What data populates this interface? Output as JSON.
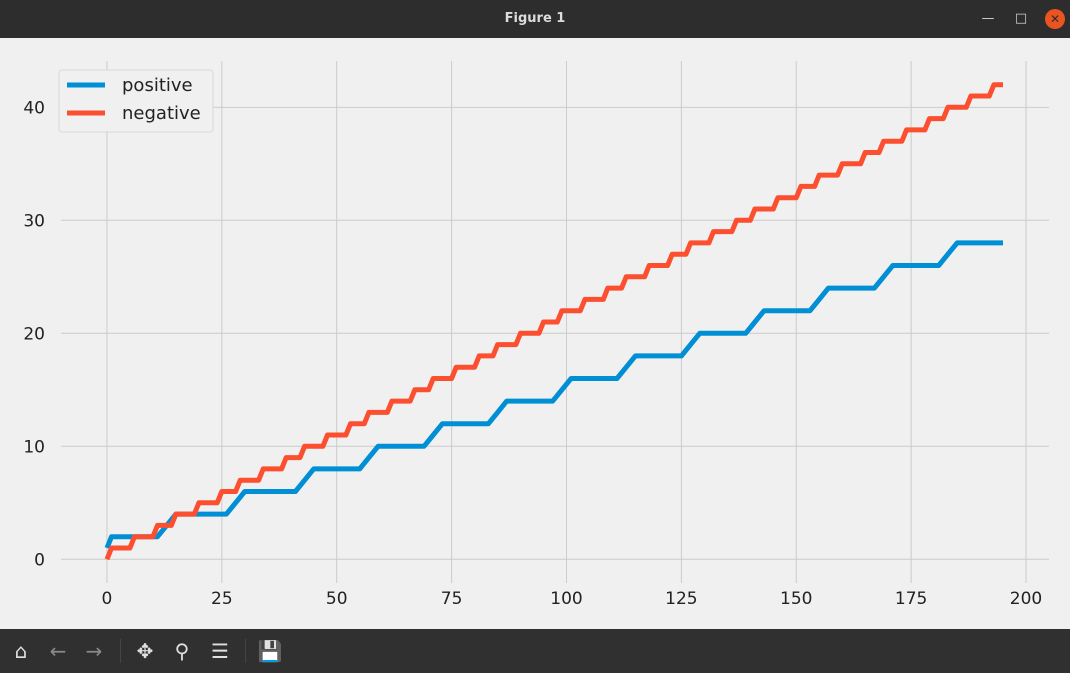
{
  "window": {
    "title": "Figure 1"
  },
  "toolbar": {
    "buttons": [
      "home-icon",
      "back-icon",
      "forward-icon",
      "pan-icon",
      "zoom-icon",
      "configure-subplots-icon",
      "save-icon"
    ]
  },
  "colors": {
    "positive": "#008fd5",
    "negative": "#fc4f30",
    "grid": "#cbcbcb",
    "background": "#f0f0f0"
  },
  "chart_data": {
    "type": "line",
    "title": "",
    "xlabel": "",
    "ylabel": "",
    "xlim": [
      -10,
      205
    ],
    "ylim": [
      -2.1,
      44.1
    ],
    "xticks": [
      0,
      25,
      50,
      75,
      100,
      125,
      150,
      175,
      200
    ],
    "yticks": [
      0,
      10,
      20,
      30,
      40
    ],
    "grid": true,
    "legend": "top-left",
    "series": [
      {
        "name": "positive",
        "color": "#008fd5",
        "points": [
          [
            0,
            1
          ],
          [
            1,
            2
          ],
          [
            11,
            2
          ],
          [
            13,
            3
          ],
          [
            15,
            4
          ],
          [
            26,
            4
          ],
          [
            28,
            5
          ],
          [
            30,
            6
          ],
          [
            41,
            6
          ],
          [
            43,
            7
          ],
          [
            45,
            8
          ],
          [
            55,
            8
          ],
          [
            57,
            9
          ],
          [
            59,
            10
          ],
          [
            69,
            10
          ],
          [
            71,
            11
          ],
          [
            73,
            12
          ],
          [
            83,
            12
          ],
          [
            85,
            13
          ],
          [
            87,
            14
          ],
          [
            97,
            14
          ],
          [
            99,
            15
          ],
          [
            101,
            16
          ],
          [
            111,
            16
          ],
          [
            113,
            17
          ],
          [
            115,
            18
          ],
          [
            125,
            18
          ],
          [
            127,
            19
          ],
          [
            129,
            20
          ],
          [
            139,
            20
          ],
          [
            141,
            21
          ],
          [
            143,
            22
          ],
          [
            153,
            22
          ],
          [
            155,
            23
          ],
          [
            157,
            24
          ],
          [
            167,
            24
          ],
          [
            169,
            25
          ],
          [
            171,
            26
          ],
          [
            181,
            26
          ],
          [
            183,
            27
          ],
          [
            185,
            28
          ],
          [
            195,
            28
          ]
        ]
      },
      {
        "name": "negative",
        "color": "#fc4f30",
        "points": [
          [
            0,
            0
          ],
          [
            1,
            1
          ],
          [
            5,
            1
          ],
          [
            6,
            2
          ],
          [
            10,
            2
          ],
          [
            11,
            3
          ],
          [
            14,
            3
          ],
          [
            15,
            4
          ],
          [
            19,
            4
          ],
          [
            20,
            5
          ],
          [
            24,
            5
          ],
          [
            25,
            6
          ],
          [
            28,
            6
          ],
          [
            29,
            7
          ],
          [
            33,
            7
          ],
          [
            34,
            8
          ],
          [
            38,
            8
          ],
          [
            39,
            9
          ],
          [
            42,
            9
          ],
          [
            43,
            10
          ],
          [
            47,
            10
          ],
          [
            48,
            11
          ],
          [
            52,
            11
          ],
          [
            53,
            12
          ],
          [
            56,
            12
          ],
          [
            57,
            13
          ],
          [
            61,
            13
          ],
          [
            62,
            14
          ],
          [
            66,
            14
          ],
          [
            67,
            15
          ],
          [
            70,
            15
          ],
          [
            71,
            16
          ],
          [
            75,
            16
          ],
          [
            76,
            17
          ],
          [
            80,
            17
          ],
          [
            81,
            18
          ],
          [
            84,
            18
          ],
          [
            85,
            19
          ],
          [
            89,
            19
          ],
          [
            90,
            20
          ],
          [
            94,
            20
          ],
          [
            95,
            21
          ],
          [
            98,
            21
          ],
          [
            99,
            22
          ],
          [
            103,
            22
          ],
          [
            104,
            23
          ],
          [
            108,
            23
          ],
          [
            109,
            24
          ],
          [
            112,
            24
          ],
          [
            113,
            25
          ],
          [
            117,
            25
          ],
          [
            118,
            26
          ],
          [
            122,
            26
          ],
          [
            123,
            27
          ],
          [
            126,
            27
          ],
          [
            127,
            28
          ],
          [
            131,
            28
          ],
          [
            132,
            29
          ],
          [
            136,
            29
          ],
          [
            137,
            30
          ],
          [
            140,
            30
          ],
          [
            141,
            31
          ],
          [
            145,
            31
          ],
          [
            146,
            32
          ],
          [
            150,
            32
          ],
          [
            151,
            33
          ],
          [
            154,
            33
          ],
          [
            155,
            34
          ],
          [
            159,
            34
          ],
          [
            160,
            35
          ],
          [
            164,
            35
          ],
          [
            165,
            36
          ],
          [
            168,
            36
          ],
          [
            169,
            37
          ],
          [
            173,
            37
          ],
          [
            174,
            38
          ],
          [
            178,
            38
          ],
          [
            179,
            39
          ],
          [
            182,
            39
          ],
          [
            183,
            40
          ],
          [
            187,
            40
          ],
          [
            188,
            41
          ],
          [
            192,
            41
          ],
          [
            193,
            42
          ],
          [
            195,
            42
          ]
        ]
      }
    ]
  }
}
